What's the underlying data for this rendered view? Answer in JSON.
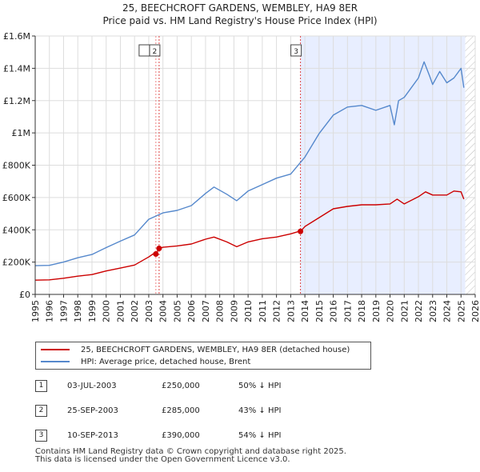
{
  "chart_data": {
    "type": "line",
    "title": "25, BEECHCROFT GARDENS, WEMBLEY, HA9 8ER",
    "subtitle": "Price paid vs. HM Land Registry's House Price Index (HPI)",
    "x_ticks": [
      "1995",
      "1996",
      "1997",
      "1998",
      "1999",
      "2000",
      "2001",
      "2002",
      "2003",
      "2004",
      "2005",
      "2006",
      "2007",
      "2008",
      "2009",
      "2010",
      "2011",
      "2012",
      "2013",
      "2014",
      "2015",
      "2016",
      "2017",
      "2018",
      "2019",
      "2020",
      "2021",
      "2022",
      "2023",
      "2024",
      "2025",
      "2026"
    ],
    "y_ticks": [
      "£0",
      "£200K",
      "£400K",
      "£600K",
      "£800K",
      "£1M",
      "£1.2M",
      "£1.4M",
      "£1.6M"
    ],
    "xlim": [
      1995,
      2026
    ],
    "ylim": [
      0,
      1600000
    ],
    "series": [
      {
        "name": "25, BEECHCROFT GARDENS, WEMBLEY, HA9 8ER (detached house)",
        "color": "#cc0000",
        "x": [
          1995,
          1996,
          1997,
          1998,
          1999,
          2000,
          2001,
          2002,
          2003.0,
          2003.3,
          2003.5,
          2003.73,
          2004,
          2005,
          2006,
          2007,
          2007.6,
          2008.5,
          2009.2,
          2010,
          2011,
          2012,
          2013.0,
          2013.5,
          2013.69,
          2014,
          2015,
          2016,
          2017,
          2018,
          2019,
          2020,
          2020.5,
          2021,
          2022,
          2022.5,
          2023,
          2024,
          2024.5,
          2025,
          2025.2
        ],
        "values": [
          88000,
          90000,
          100000,
          113000,
          123000,
          145000,
          163000,
          182000,
          232000,
          250000,
          250000,
          285000,
          292000,
          300000,
          312000,
          342000,
          355000,
          325000,
          295000,
          325000,
          345000,
          355000,
          375000,
          388000,
          390000,
          420000,
          475000,
          530000,
          545000,
          555000,
          555000,
          560000,
          590000,
          560000,
          605000,
          635000,
          615000,
          615000,
          640000,
          635000,
          590000
        ]
      },
      {
        "name": "HPI: Average price, detached house, Brent",
        "color": "#5588cc",
        "x": [
          1995,
          1996,
          1997,
          1998,
          1999,
          2000,
          2001,
          2002,
          2003.0,
          2004,
          2005,
          2006,
          2007,
          2007.6,
          2008.5,
          2009.2,
          2010,
          2011,
          2012,
          2013.0,
          2014,
          2015,
          2016,
          2017,
          2018,
          2019,
          2020,
          2020.3,
          2020.6,
          2021,
          2021.5,
          2022,
          2022.4,
          2022.8,
          2023,
          2023.5,
          2024,
          2024.5,
          2025,
          2025.2
        ],
        "values": [
          178000,
          180000,
          200000,
          227000,
          247000,
          290000,
          330000,
          368000,
          465000,
          505000,
          520000,
          550000,
          625000,
          665000,
          620000,
          580000,
          640000,
          680000,
          720000,
          745000,
          850000,
          995000,
          1110000,
          1160000,
          1170000,
          1140000,
          1170000,
          1050000,
          1200000,
          1220000,
          1280000,
          1340000,
          1440000,
          1350000,
          1300000,
          1380000,
          1310000,
          1340000,
          1400000,
          1280000
        ]
      }
    ],
    "transactions": [
      {
        "num": "1",
        "x": 2003.5,
        "value": 250000,
        "date": "03-JUL-2003",
        "price": "£250,000",
        "hpi": "50% ↓ HPI",
        "show_label": false
      },
      {
        "num": "2",
        "x": 2003.73,
        "value": 285000,
        "date": "25-SEP-2003",
        "price": "£285,000",
        "hpi": "43% ↓ HPI",
        "show_label": true
      },
      {
        "num": "3",
        "x": 2013.69,
        "value": 390000,
        "date": "10-SEP-2013",
        "price": "£390,000",
        "hpi": "54% ↓ HPI",
        "show_label": true
      }
    ],
    "shaded_region": {
      "from": 2013.69,
      "to": 2025.3,
      "color": "#e8eeff"
    },
    "future_hatch_from": 2025.3,
    "legend_placement": "below"
  },
  "footer": {
    "line1": "Contains HM Land Registry data © Crown copyright and database right 2025.",
    "line2": "This data is licensed under the Open Government Licence v3.0."
  }
}
